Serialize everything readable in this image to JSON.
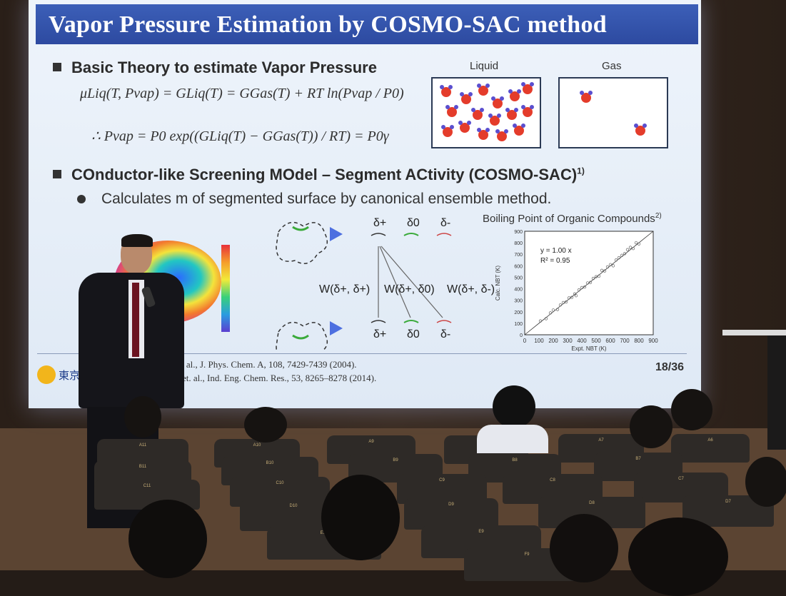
{
  "slide": {
    "title": "Vapor Pressure Estimation by COSMO-SAC method",
    "section1": "Basic Theory to estimate Vapor Pressure",
    "eq1": "μLiq(T, Pvap) = GLiq(T) = GGas(T) + RT ln(Pvap / P0)",
    "eq2": "∴ Pvap = P0 exp((GLiq(T) − GGas(T)) / RT) = P0γ",
    "liquid_label": "Liquid",
    "gas_label": "Gas",
    "section2": "COnductor-like Screening MOdel – Segment ACtivity (COSMO-SAC)",
    "section2_sup": "1)",
    "bullet1": "Calculates m of segmented surface by canonical ensemble method.",
    "delta_top": [
      "δ+",
      "δ0",
      "δ-"
    ],
    "delta_bottom": [
      "δ+",
      "δ0",
      "δ-"
    ],
    "w_labels": [
      "W(δ+, δ+)",
      "W(δ+, δ0)",
      "W(δ+, δ-)"
    ],
    "chart_title": "Boiling Point of Organic Compounds",
    "chart_title_sup": "2)",
    "ref1": "S. T. et. al., J. Phys. Chem. A, 108, 7429-7439 (2004).",
    "ref2": "Xiong, et. al., Ind. Eng. Chem. Res., 53, 8265–8278 (2014).",
    "page": "18/36",
    "logo_text": "東京"
  },
  "chart_data": {
    "type": "scatter",
    "title": "Boiling Point of Organic Compounds",
    "xlabel": "Expt. NBT (K)",
    "ylabel": "Calc. NBT (K)",
    "xlim": [
      0,
      900
    ],
    "ylim": [
      0,
      900
    ],
    "x_ticks": [
      0,
      100,
      200,
      300,
      400,
      500,
      600,
      700,
      800,
      900
    ],
    "y_ticks": [
      0,
      100,
      200,
      300,
      400,
      500,
      600,
      700,
      800,
      900
    ],
    "annotation": [
      "y = 1.00 x",
      "R² = 0.95"
    ],
    "points": [
      [
        110,
        120
      ],
      [
        150,
        140
      ],
      [
        180,
        190
      ],
      [
        200,
        215
      ],
      [
        230,
        220
      ],
      [
        250,
        260
      ],
      [
        270,
        280
      ],
      [
        290,
        285
      ],
      [
        310,
        320
      ],
      [
        330,
        325
      ],
      [
        350,
        355
      ],
      [
        360,
        340
      ],
      [
        380,
        390
      ],
      [
        400,
        410
      ],
      [
        420,
        415
      ],
      [
        440,
        450
      ],
      [
        460,
        455
      ],
      [
        480,
        490
      ],
      [
        500,
        505
      ],
      [
        520,
        510
      ],
      [
        540,
        560
      ],
      [
        560,
        555
      ],
      [
        580,
        590
      ],
      [
        600,
        610
      ],
      [
        620,
        600
      ],
      [
        640,
        650
      ],
      [
        660,
        670
      ],
      [
        680,
        690
      ],
      [
        700,
        705
      ],
      [
        720,
        740
      ],
      [
        740,
        760
      ],
      [
        760,
        750
      ],
      [
        780,
        800
      ],
      [
        800,
        790
      ]
    ]
  },
  "seats": [
    "A11",
    "A10",
    "A9",
    "A8",
    "A7",
    "A6",
    "B11",
    "B10",
    "B9",
    "B8",
    "B7",
    "C11",
    "C10",
    "C9",
    "C8",
    "C7",
    "D10",
    "D9",
    "D8",
    "D7",
    "E10",
    "E9",
    "F9"
  ]
}
